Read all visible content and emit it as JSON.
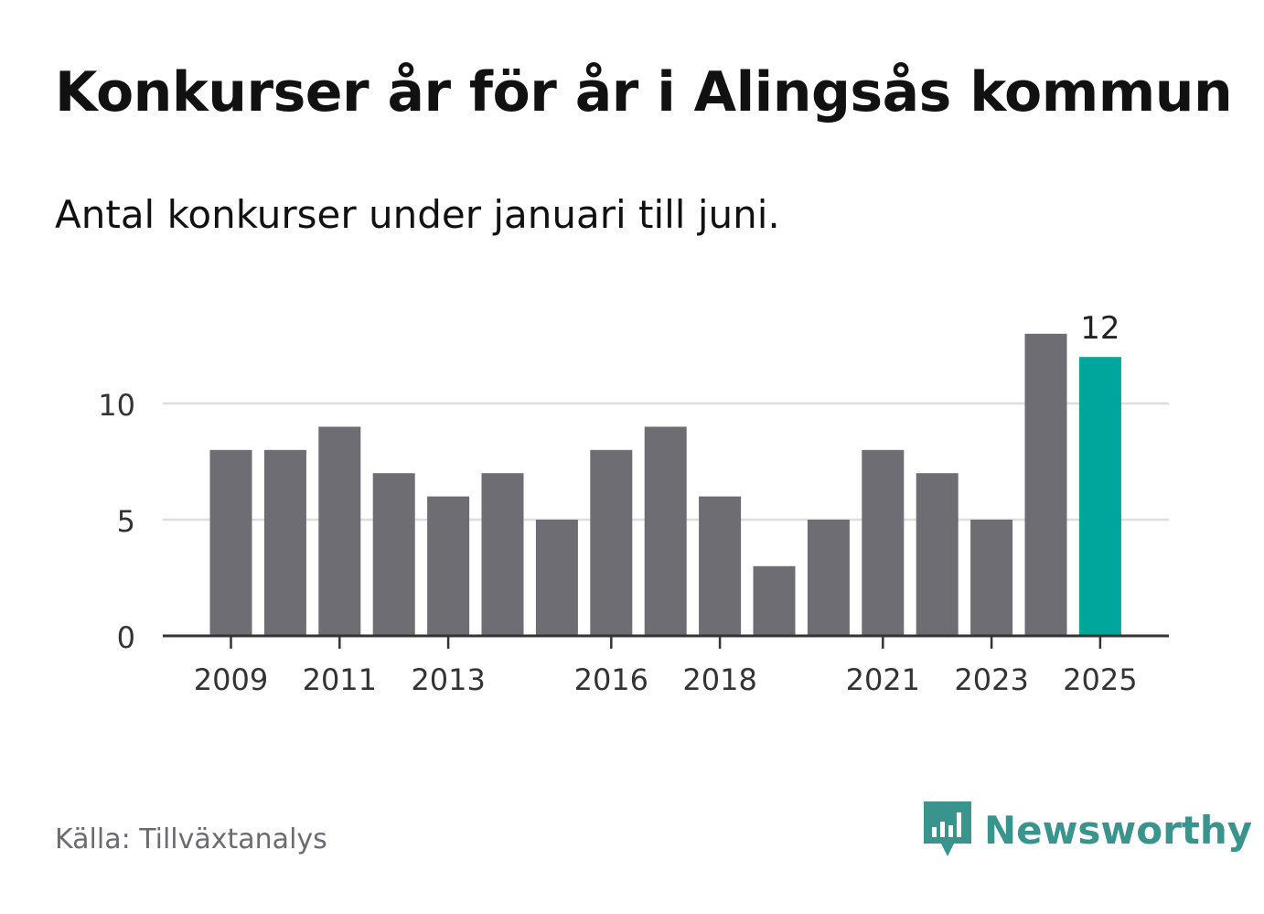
{
  "title": "Konkurser år för år i Alingsås kommun",
  "subtitle": "Antal konkurser under januari till juni.",
  "source": "Källa: Tillväxtanalys",
  "brand": {
    "name": "Newsworthy",
    "icon": "newsworthy-logo-icon",
    "color": "#3a948e"
  },
  "colors": {
    "bar": "#6e6d73",
    "highlight": "#00a59b",
    "grid": "#dddddd",
    "axis": "#333333",
    "text": "#333333"
  },
  "chart_data": {
    "type": "bar",
    "title": "Konkurser år för år i Alingsås kommun",
    "subtitle": "Antal konkurser under januari till juni.",
    "categories": [
      "2009",
      "2010",
      "2011",
      "2012",
      "2013",
      "2014",
      "2015",
      "2016",
      "2017",
      "2018",
      "2019",
      "2020",
      "2021",
      "2022",
      "2023",
      "2024",
      "2025"
    ],
    "values": [
      8,
      8,
      9,
      7,
      6,
      7,
      5,
      8,
      9,
      6,
      3,
      5,
      8,
      7,
      5,
      13,
      12
    ],
    "x_tick_labels": [
      "2009",
      "2011",
      "2013",
      "2016",
      "2018",
      "2021",
      "2023",
      "2025"
    ],
    "y_ticks": [
      0,
      5,
      10
    ],
    "ylim": [
      0,
      13
    ],
    "grid": true,
    "highlight_category": "2025",
    "data_labels": [
      {
        "category": "2025",
        "label": "12"
      }
    ],
    "xlabel": "",
    "ylabel": ""
  }
}
